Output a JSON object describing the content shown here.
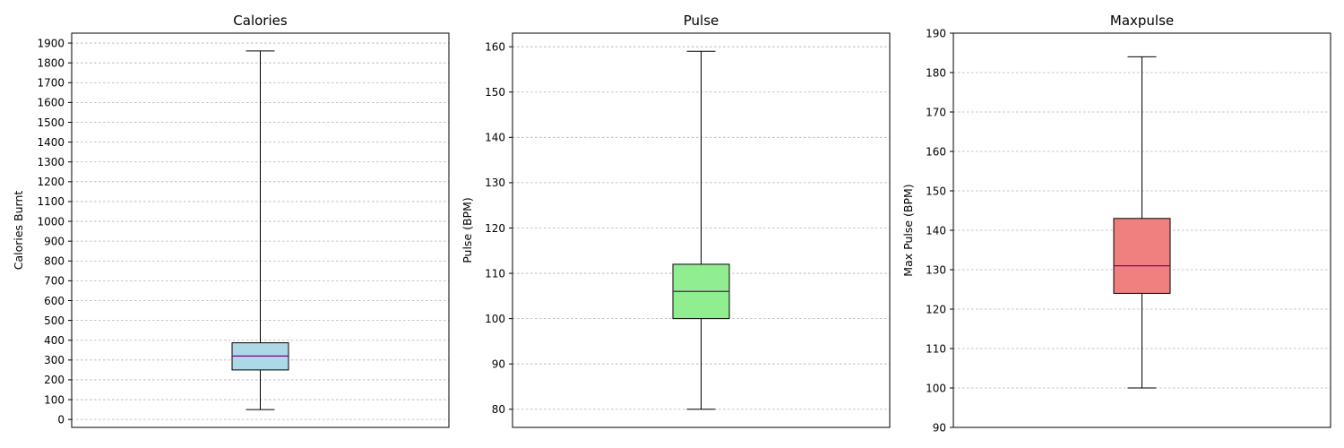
{
  "chart_data": [
    {
      "type": "box",
      "title": "Calories",
      "xlabel": "",
      "ylabel": "Calories Burnt",
      "ylim": [
        -40,
        1950
      ],
      "yticks": [
        0,
        100,
        200,
        300,
        400,
        500,
        600,
        700,
        800,
        900,
        1000,
        1100,
        1200,
        1300,
        1400,
        1500,
        1600,
        1700,
        1800,
        1900
      ],
      "box": {
        "whisker_low": 50,
        "q1": 250,
        "median": 320,
        "q3": 387,
        "whisker_high": 1860
      },
      "fill": "#add8e6",
      "grid": true
    },
    {
      "type": "box",
      "title": "Pulse",
      "xlabel": "",
      "ylabel": "Pulse (BPM)",
      "ylim": [
        76,
        163
      ],
      "yticks": [
        80,
        90,
        100,
        110,
        120,
        130,
        140,
        150,
        160
      ],
      "box": {
        "whisker_low": 80,
        "q1": 100,
        "median": 106,
        "q3": 112,
        "whisker_high": 159
      },
      "fill": "#90ee90",
      "grid": true
    },
    {
      "type": "box",
      "title": "Maxpulse",
      "xlabel": "",
      "ylabel": "Max Pulse (BPM)",
      "ylim": [
        90,
        190
      ],
      "yticks": [
        90,
        100,
        110,
        120,
        130,
        140,
        150,
        160,
        170,
        180,
        190
      ],
      "box": {
        "whisker_low": 100,
        "q1": 124,
        "median": 131,
        "q3": 143,
        "whisker_high": 184
      },
      "fill": "#f08080",
      "grid": true
    }
  ],
  "colors": {
    "median": "#800080",
    "grid": "#b0b0b0",
    "lines": "#000000"
  }
}
